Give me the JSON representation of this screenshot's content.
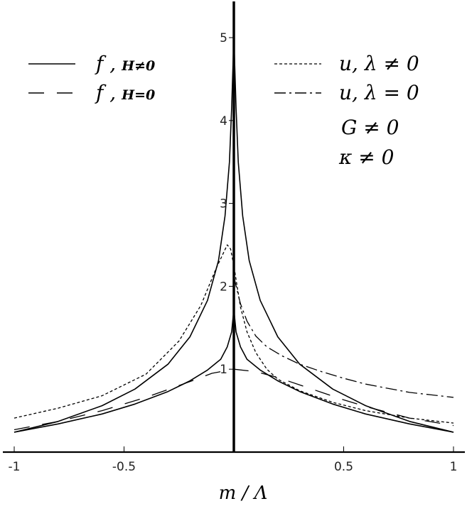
{
  "chart_data": {
    "type": "line",
    "title": "",
    "xlabel": "m / Λ",
    "ylabel": "",
    "xlim": [
      -1,
      1
    ],
    "ylim": [
      0,
      5.4
    ],
    "x_ticks": [
      "-1",
      "-0.5",
      "0.5",
      "1"
    ],
    "y_ticks": [
      "1",
      "2",
      "3",
      "4",
      "5"
    ],
    "grid": false,
    "legend_position": "top",
    "series": [
      {
        "name": "f, H≠0",
        "style": "solid",
        "x": [
          -1,
          -0.8,
          -0.6,
          -0.45,
          -0.3,
          -0.2,
          -0.12,
          -0.07,
          -0.04,
          -0.02,
          -0.01,
          0,
          0.01,
          0.02,
          0.04,
          0.07,
          0.12,
          0.2,
          0.3,
          0.45,
          0.6,
          0.8,
          1
        ],
        "y": [
          0.24,
          0.37,
          0.56,
          0.76,
          1.06,
          1.39,
          1.83,
          2.31,
          2.85,
          3.5,
          4.15,
          5.0,
          4.15,
          3.5,
          2.85,
          2.31,
          1.83,
          1.39,
          1.06,
          0.76,
          0.56,
          0.37,
          0.24
        ]
      },
      {
        "name": "f, H=0",
        "style": "dashed",
        "x": [
          -1,
          -0.8,
          -0.6,
          -0.4,
          -0.2,
          -0.1,
          0,
          0.1,
          0.2,
          0.3,
          0.4,
          0.5,
          0.6,
          0.8,
          1
        ],
        "y": [
          0.27,
          0.37,
          0.5,
          0.66,
          0.85,
          0.95,
          1.0,
          0.97,
          0.9,
          0.81,
          0.72,
          0.63,
          0.55,
          0.41,
          0.32
        ]
      },
      {
        "name": "u, λ ≠ 0",
        "style": "dotted",
        "x": [
          -1,
          -0.8,
          -0.6,
          -0.4,
          -0.25,
          -0.15,
          -0.08,
          -0.03,
          -0.015,
          0,
          0.015,
          0.03,
          0.06,
          0.1,
          0.15,
          0.2,
          0.3,
          0.45,
          0.6,
          0.8,
          1
        ],
        "y": [
          0.41,
          0.53,
          0.68,
          0.94,
          1.34,
          1.77,
          2.22,
          2.5,
          2.45,
          2.25,
          2.0,
          1.75,
          1.45,
          1.2,
          1.0,
          0.88,
          0.74,
          0.6,
          0.5,
          0.41,
          0.35
        ]
      },
      {
        "name": "u, λ = 0",
        "style": "dashdot",
        "x": [
          0,
          0.015,
          0.03,
          0.06,
          0.1,
          0.15,
          0.22,
          0.3,
          0.4,
          0.5,
          0.6,
          0.7,
          0.8,
          0.9,
          1
        ],
        "y": [
          2.12,
          1.95,
          1.79,
          1.58,
          1.4,
          1.27,
          1.16,
          1.06,
          0.97,
          0.89,
          0.82,
          0.77,
          0.72,
          0.69,
          0.66
        ]
      },
      {
        "name": "",
        "style": "solid",
        "x": [
          -1,
          -0.8,
          -0.6,
          -0.45,
          -0.3,
          -0.2,
          -0.12,
          -0.06,
          -0.03,
          -0.01,
          0,
          0.01,
          0.03,
          0.06,
          0.12,
          0.2,
          0.3,
          0.45,
          0.6,
          0.8,
          1
        ],
        "y": [
          0.24,
          0.34,
          0.46,
          0.58,
          0.73,
          0.86,
          0.99,
          1.12,
          1.27,
          1.45,
          1.72,
          1.45,
          1.27,
          1.12,
          0.99,
          0.86,
          0.73,
          0.58,
          0.46,
          0.34,
          0.24
        ]
      }
    ],
    "legend": {
      "left": [
        {
          "symbol": "f ,",
          "sub": "H≠0",
          "style": "solid"
        },
        {
          "symbol": "f ,",
          "sub": "H=0",
          "style": "dashed"
        }
      ],
      "right": [
        {
          "symbol": "u, λ ≠ 0",
          "style": "dotted"
        },
        {
          "symbol": "u, λ = 0",
          "style": "dashdot"
        }
      ]
    },
    "annotations": [
      "G ≠ 0",
      "κ ≠ 0"
    ]
  }
}
